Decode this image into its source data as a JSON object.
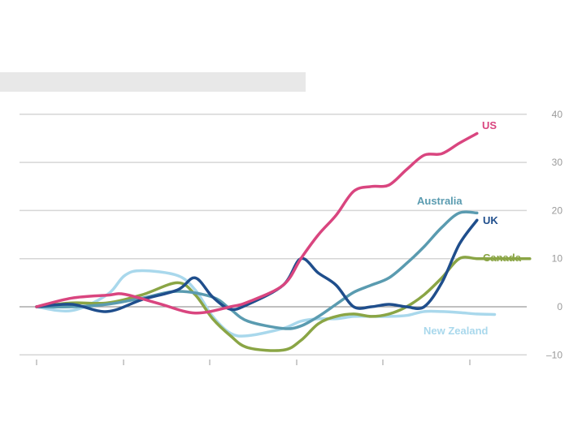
{
  "subtitle": "",
  "source": "",
  "chart_data": {
    "type": "line",
    "title": "",
    "xlabel": "",
    "ylabel": "",
    "x_tick_labels": [
      "",
      "",
      "",
      "",
      "",
      ""
    ],
    "y_ticks": [
      -10,
      0,
      10,
      20,
      30,
      40
    ],
    "y_tick_labels": [
      "–10",
      "0",
      "10",
      "20",
      "30",
      "40"
    ],
    "ylim": [
      -10,
      42
    ],
    "x_range": [
      0,
      5.5
    ],
    "grid": "horizontal",
    "series": [
      {
        "name": "US",
        "color": "#d9457f",
        "x": [
          0,
          0.4,
          0.8,
          1.0,
          1.4,
          1.8,
          2.2,
          2.4,
          2.8,
          3.0,
          3.2,
          3.4,
          3.6,
          3.8,
          4.0,
          4.2,
          4.4,
          4.6,
          4.8,
          5.0
        ],
        "y": [
          0,
          1.8,
          2.4,
          2.6,
          0.6,
          -1.3,
          0.0,
          1.0,
          4.5,
          10.0,
          15.0,
          19.0,
          24.0,
          25.0,
          25.3,
          28.5,
          31.5,
          31.8,
          34.0,
          36.0
        ]
      },
      {
        "name": "Australia",
        "color": "#5a9bb0",
        "x": [
          0,
          0.4,
          0.8,
          1.2,
          1.6,
          2.0,
          2.2,
          2.4,
          2.8,
          3.0,
          3.2,
          3.4,
          3.6,
          3.8,
          4.0,
          4.2,
          4.4,
          4.6,
          4.8,
          5.0
        ],
        "y": [
          0.0,
          0.0,
          0.5,
          1.8,
          3.2,
          2.0,
          -0.5,
          -3.0,
          -4.5,
          -4.0,
          -2.0,
          0.5,
          3.0,
          4.5,
          6.0,
          9.0,
          12.5,
          16.5,
          19.5,
          19.5
        ]
      },
      {
        "name": "UK",
        "color": "#1f4e8c",
        "x": [
          0,
          0.4,
          0.8,
          1.2,
          1.6,
          1.8,
          2.0,
          2.2,
          2.4,
          2.8,
          3.0,
          3.2,
          3.4,
          3.6,
          3.8,
          4.0,
          4.2,
          4.4,
          4.6,
          4.8,
          5.0
        ],
        "y": [
          0,
          0.5,
          -1.0,
          1.5,
          3.5,
          6.0,
          2.0,
          -0.5,
          0.5,
          4.5,
          10.0,
          7.0,
          4.5,
          0.0,
          0.0,
          0.5,
          0.0,
          0.0,
          5.0,
          13.0,
          18.0
        ]
      },
      {
        "name": "Canada",
        "color": "#8aa545",
        "x": [
          0,
          0.4,
          0.8,
          1.2,
          1.6,
          1.8,
          2.0,
          2.2,
          2.4,
          2.8,
          3.0,
          3.2,
          3.4,
          3.6,
          3.8,
          4.0,
          4.2,
          4.4,
          4.6,
          4.8,
          5.0,
          5.2,
          5.6
        ],
        "y": [
          0,
          0.8,
          0.8,
          2.5,
          5.0,
          2.5,
          -2.5,
          -6.0,
          -8.5,
          -9.0,
          -7.0,
          -3.5,
          -2.0,
          -1.5,
          -2.0,
          -1.5,
          0.0,
          2.5,
          6.0,
          10.0,
          10.0,
          10.0,
          10.0
        ]
      },
      {
        "name": "New Zealand",
        "color": "#a9d8ec",
        "x": [
          0,
          0.4,
          0.8,
          1.0,
          1.2,
          1.6,
          1.8,
          2.0,
          2.2,
          2.4,
          2.8,
          3.0,
          3.2,
          3.4,
          3.6,
          3.8,
          4.0,
          4.2,
          4.4,
          4.6,
          4.8,
          5.0,
          5.2
        ],
        "y": [
          0,
          -0.8,
          2.5,
          6.5,
          7.5,
          6.5,
          3.5,
          -2.0,
          -5.5,
          -6.0,
          -4.5,
          -3.0,
          -2.5,
          -2.5,
          -2.0,
          -2.0,
          -2.0,
          -1.8,
          -1.0,
          -1.0,
          -1.2,
          -1.5,
          -1.6
        ]
      }
    ]
  }
}
